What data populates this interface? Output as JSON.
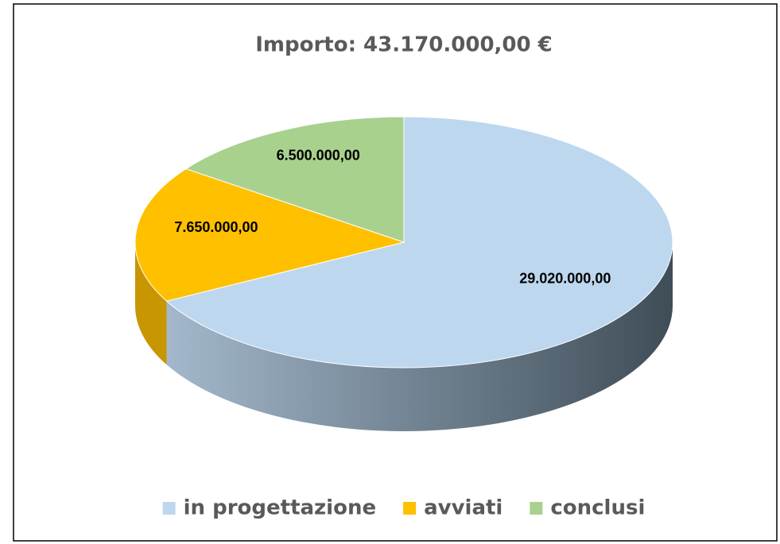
{
  "chart_data": {
    "type": "pie",
    "title": "Importo: 43.170.000,00 €",
    "categories": [
      "in progettazione",
      "avviati",
      "conclusi"
    ],
    "values": [
      29020000,
      7650000,
      6500000
    ],
    "value_labels": [
      "29.020.000,00",
      "7.650.000,00",
      "6.500.000,00"
    ],
    "colors": [
      "#bdd7ee",
      "#ffc000",
      "#a9d18e"
    ],
    "legend": "bottom"
  }
}
